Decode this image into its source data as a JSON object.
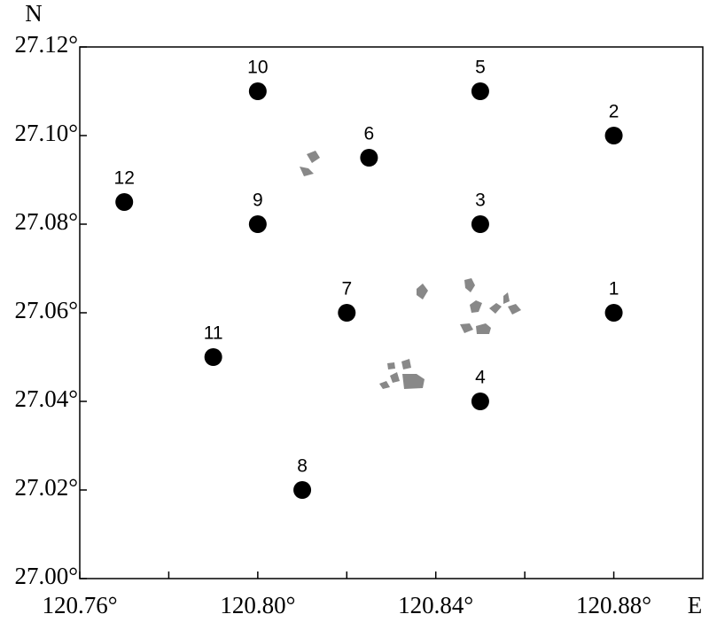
{
  "chart_data": {
    "type": "scatter",
    "x_label": "E",
    "y_label": "N",
    "x": [
      120.88,
      120.88,
      120.85,
      120.85,
      120.85,
      120.825,
      120.82,
      120.81,
      120.8,
      120.8,
      120.79,
      120.77
    ],
    "values": [
      27.06,
      27.1,
      27.08,
      27.04,
      27.11,
      27.095,
      27.06,
      27.02,
      27.08,
      27.11,
      27.05,
      27.085
    ],
    "labels": [
      "1",
      "2",
      "3",
      "4",
      "5",
      "6",
      "7",
      "8",
      "9",
      "10",
      "11",
      "12"
    ],
    "color": "#000000",
    "xlim": [
      120.76,
      120.9
    ],
    "ylim": [
      27.0,
      27.12
    ],
    "xticks": [
      {
        "value": 120.76,
        "label": "120.76°"
      },
      {
        "value": 120.8,
        "label": "120.80°"
      },
      {
        "value": 120.84,
        "label": "120.84°"
      },
      {
        "value": 120.88,
        "label": "120.88°"
      }
    ],
    "xminorticks": [
      120.78,
      120.82,
      120.86
    ],
    "yticks": [
      {
        "value": 27.0,
        "label": "27.00°"
      },
      {
        "value": 27.02,
        "label": "27.02°"
      },
      {
        "value": 27.04,
        "label": "27.04°"
      },
      {
        "value": 27.06,
        "label": "27.06°"
      },
      {
        "value": 27.08,
        "label": "27.08°"
      },
      {
        "value": 27.1,
        "label": "27.10°"
      },
      {
        "value": 27.12,
        "label": "27.12°"
      }
    ]
  }
}
